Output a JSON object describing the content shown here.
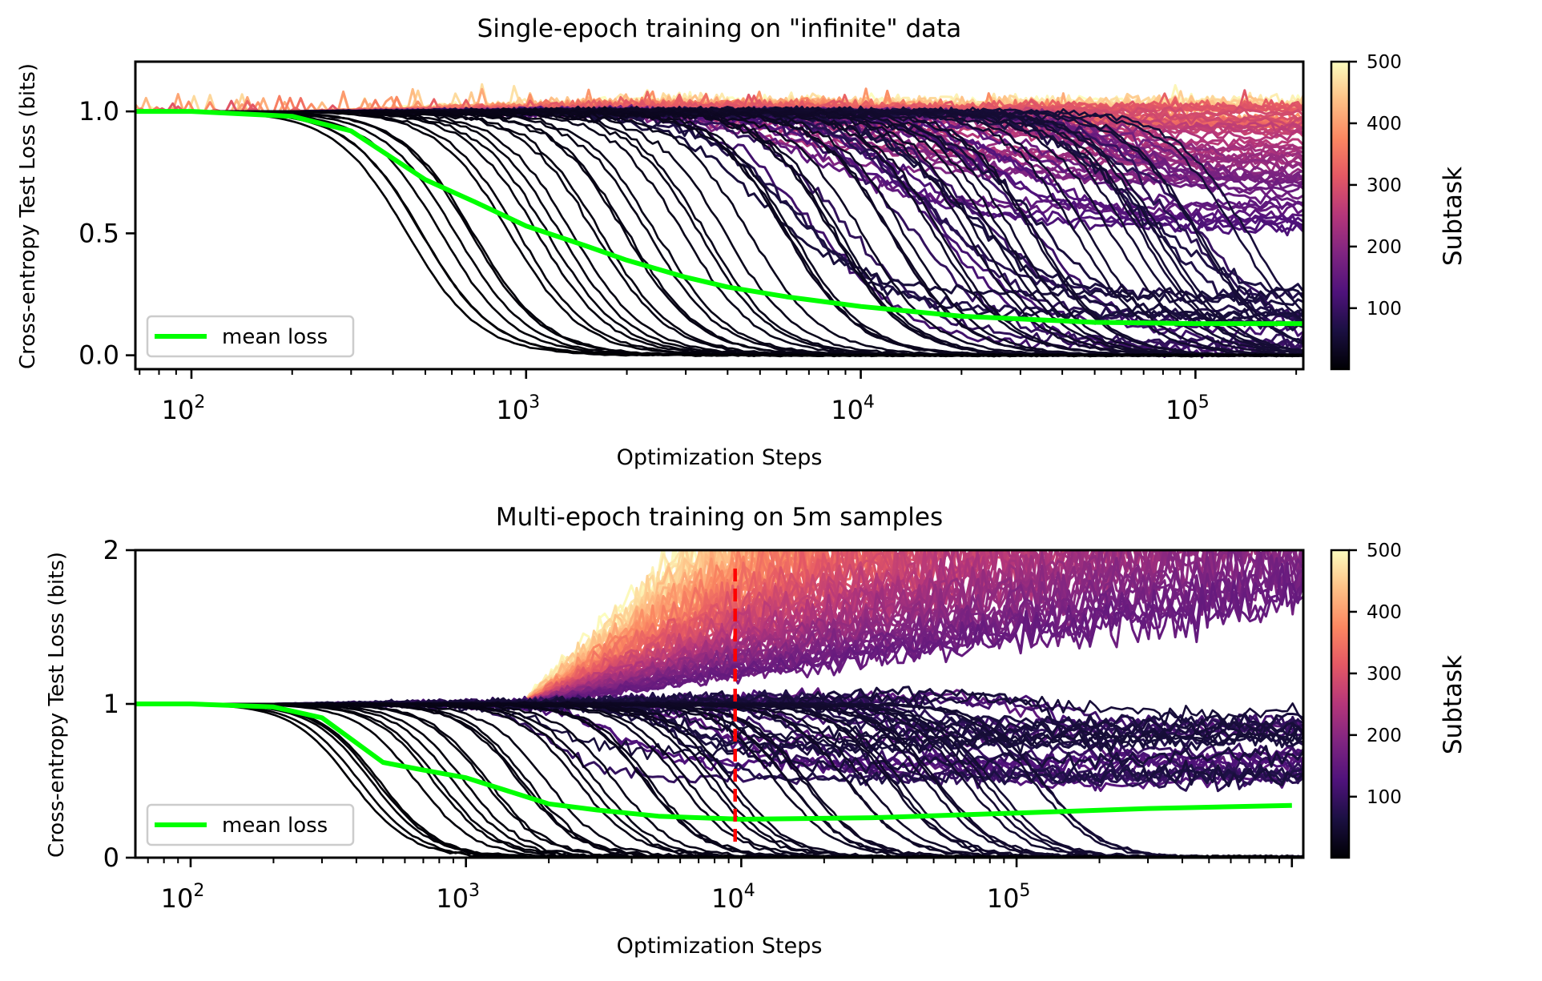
{
  "chart_data": [
    {
      "type": "line",
      "title": "Single-epoch training on \"infinite\" data",
      "xlabel": "Optimization Steps",
      "ylabel": "Cross-entropy Test Loss (bits)",
      "xscale": "log",
      "xlim": [
        68,
        210000
      ],
      "ylim": [
        -0.057,
        1.204
      ],
      "x_ticks": [
        {
          "value": 100,
          "mantissa": "10",
          "exponent": "2"
        },
        {
          "value": 1000,
          "mantissa": "10",
          "exponent": "3"
        },
        {
          "value": 10000,
          "mantissa": "10",
          "exponent": "4"
        },
        {
          "value": 100000,
          "mantissa": "10",
          "exponent": "5"
        }
      ],
      "y_ticks": [
        {
          "value": 0.0,
          "label": "0.0"
        },
        {
          "value": 0.5,
          "label": "0.5"
        },
        {
          "value": 1.0,
          "label": "1.0"
        }
      ],
      "legend": {
        "label": "mean loss",
        "placement": "lower-left",
        "color": "#00ff00"
      },
      "colorbar": {
        "label": "Subtask",
        "range": [
          1,
          500
        ],
        "colormap": "magma",
        "ticks": [
          {
            "value": 100,
            "label": "100"
          },
          {
            "value": 200,
            "label": "200"
          },
          {
            "value": 300,
            "label": "300"
          },
          {
            "value": 400,
            "label": "400"
          },
          {
            "value": 500,
            "label": "500"
          }
        ]
      },
      "series": [
        {
          "name": "mean loss",
          "color": "#00ff00",
          "x": [
            68,
            100,
            200,
            300,
            500,
            700,
            1000,
            1500,
            2000,
            3000,
            4000,
            6000,
            10000,
            20000,
            50000,
            100000,
            210000
          ],
          "y": [
            1.0,
            1.0,
            0.98,
            0.92,
            0.72,
            0.63,
            0.53,
            0.45,
            0.39,
            0.32,
            0.28,
            0.24,
            0.2,
            0.16,
            0.135,
            0.13,
            0.13
          ]
        }
      ],
      "subtask_curves": {
        "count": 500,
        "description_values": {
          "subtasks_learned_fully_transition_range": [
            400,
            140000
          ],
          "plateau_loss": 1.0
        }
      }
    },
    {
      "type": "line",
      "title": "Multi-epoch training on 5m samples",
      "xlabel": "Optimization Steps",
      "ylabel": "Cross-entropy Test Loss (bits)",
      "xscale": "log",
      "xlim": [
        63,
        1100000
      ],
      "ylim": [
        0,
        2
      ],
      "x_ticks": [
        {
          "value": 100,
          "mantissa": "10",
          "exponent": "2"
        },
        {
          "value": 1000,
          "mantissa": "10",
          "exponent": "3"
        },
        {
          "value": 10000,
          "mantissa": "10",
          "exponent": "4"
        },
        {
          "value": 100000,
          "mantissa": "10",
          "exponent": "5"
        }
      ],
      "y_ticks": [
        {
          "value": 0,
          "label": "0"
        },
        {
          "value": 1,
          "label": "1"
        },
        {
          "value": 2,
          "label": "2"
        }
      ],
      "legend": {
        "label": "mean loss",
        "placement": "lower-left",
        "color": "#00ff00"
      },
      "colorbar": {
        "label": "Subtask",
        "range": [
          1,
          500
        ],
        "colormap": "magma",
        "ticks": [
          {
            "value": 100,
            "label": "100"
          },
          {
            "value": 200,
            "label": "200"
          },
          {
            "value": 300,
            "label": "300"
          },
          {
            "value": 400,
            "label": "400"
          },
          {
            "value": 500,
            "label": "500"
          }
        ]
      },
      "series": [
        {
          "name": "mean loss",
          "color": "#00ff00",
          "x": [
            63,
            100,
            200,
            300,
            500,
            700,
            1000,
            2000,
            3000,
            5000,
            10000,
            30000,
            100000,
            300000,
            1000000
          ],
          "y": [
            1.0,
            1.0,
            0.98,
            0.91,
            0.62,
            0.57,
            0.52,
            0.35,
            0.31,
            0.27,
            0.25,
            0.26,
            0.29,
            0.32,
            0.34
          ]
        }
      ],
      "vline": {
        "x": 9500,
        "y_range": [
          0.1,
          1.88
        ],
        "color": "#ff0000",
        "style": "dashed"
      },
      "subtask_curves": {
        "count": 500,
        "description_values": {
          "overfit_onset_steps": 1600,
          "subtasks_learned_fully_transition_range": [
            340,
            150000
          ]
        }
      }
    }
  ]
}
